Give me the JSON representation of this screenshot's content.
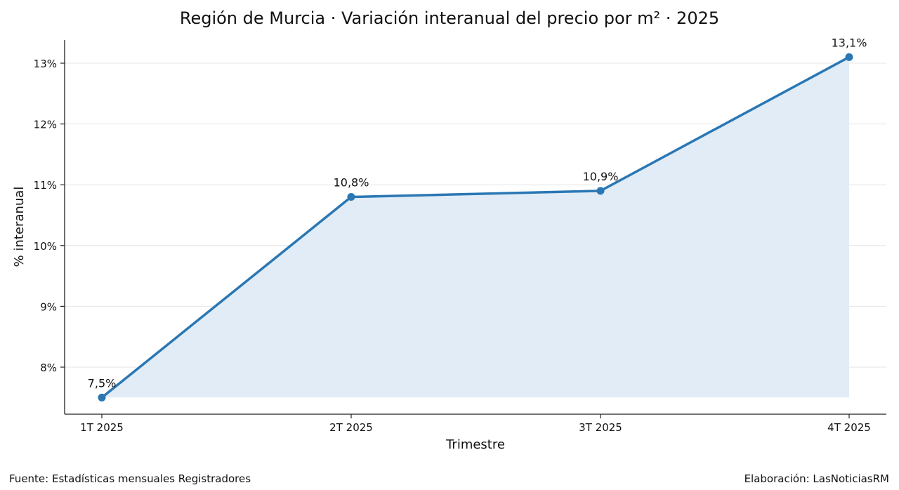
{
  "chart_data": {
    "type": "line",
    "title": "Región de Murcia · Variación interanual del precio por m² · 2025",
    "xlabel": "Trimestre",
    "ylabel": "% interanual",
    "categories": [
      "1T 2025",
      "2T 2025",
      "3T 2025",
      "4T 2025"
    ],
    "series": [
      {
        "name": "Variación interanual",
        "values": [
          7.5,
          10.8,
          10.9,
          13.1
        ],
        "labels": [
          "7,5%",
          "10,8%",
          "10,9%",
          "13,1%"
        ],
        "color": "#2a77b4",
        "fill_color": "#e1ecf6"
      }
    ],
    "yticks": [
      8,
      9,
      10,
      11,
      12,
      13
    ],
    "ytick_labels": [
      "8%",
      "9%",
      "10%",
      "11%",
      "12%",
      "13%"
    ],
    "ylim": [
      7.22,
      13.38
    ],
    "grid": "horizontal",
    "legend": "none",
    "area_fill": true
  },
  "footer": {
    "source": "Fuente: Estadísticas mensuales Registradores",
    "credit": "Elaboración: LasNoticiasRM"
  }
}
